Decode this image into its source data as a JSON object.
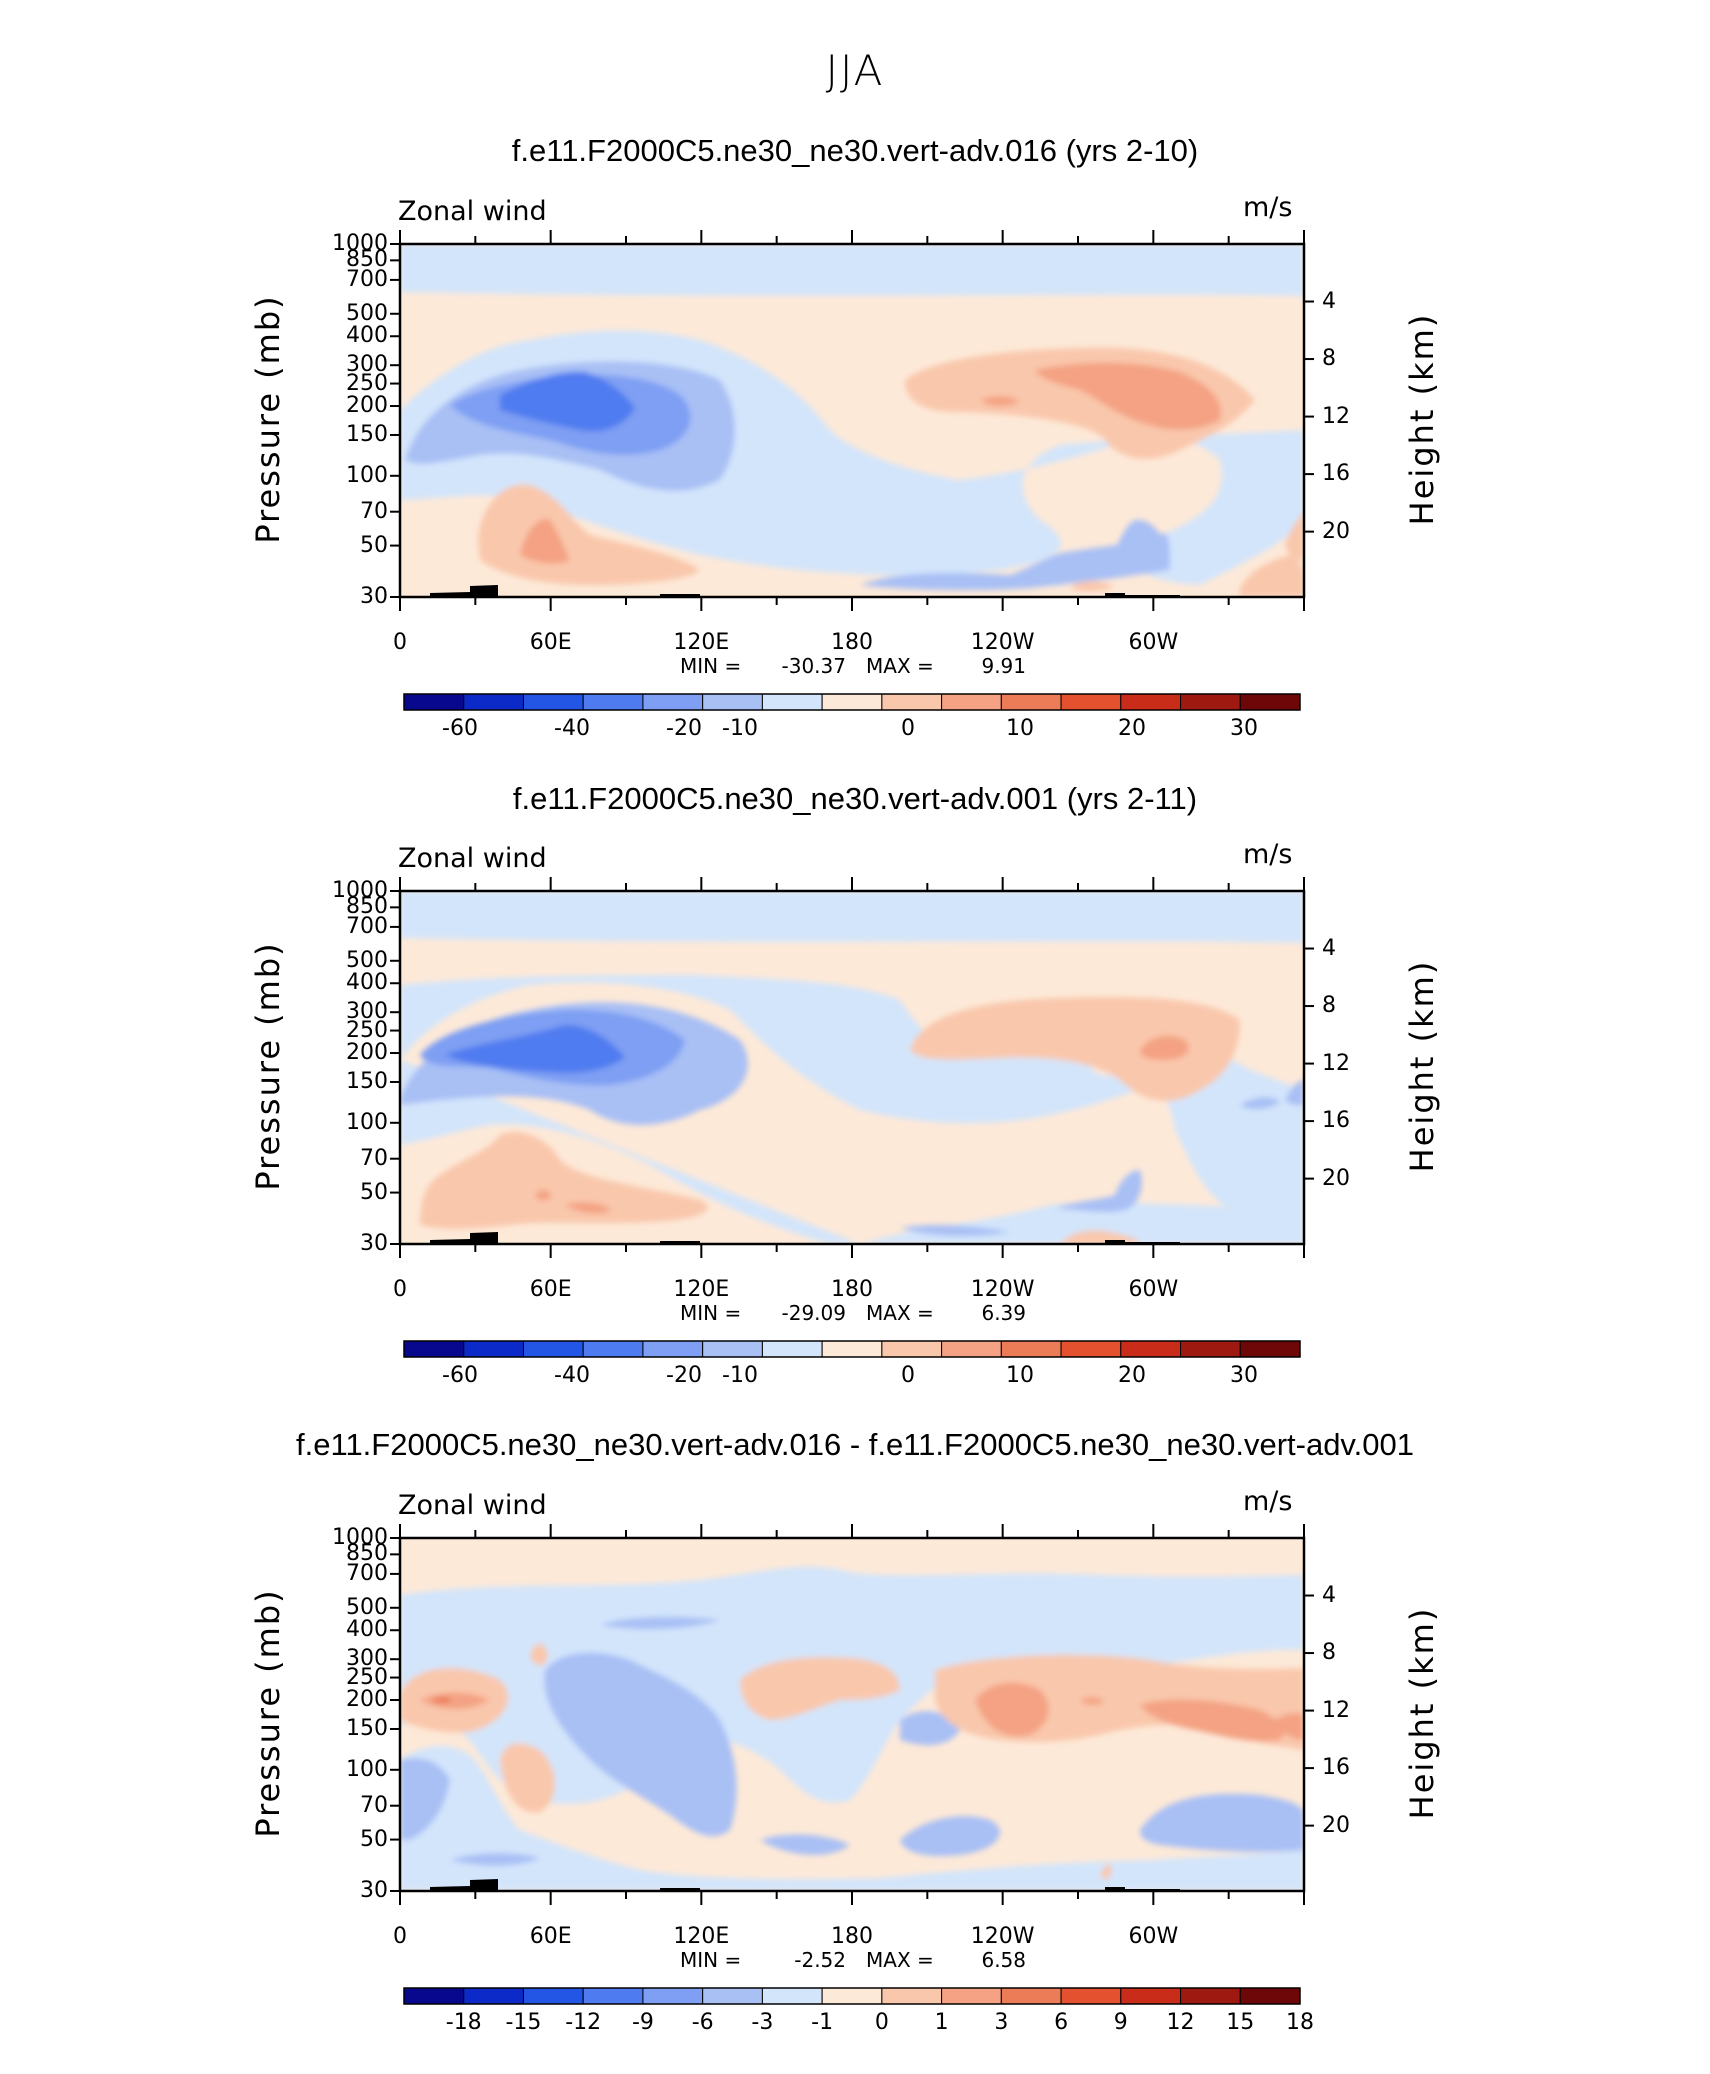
{
  "season": "JJA",
  "axes_text": {
    "field": "Zonal wind",
    "units": "m/s",
    "ylabel_left": "Pressure (mb)",
    "ylabel_right": "Height (km)",
    "min_label": "MIN =",
    "max_label": "MAX ="
  },
  "chart_data": [
    {
      "type": "heatmap",
      "title": "f.e11.F2000C5.ne30_ne30.vert-adv.016 (yrs 2-10)",
      "variable": "Zonal wind",
      "units": "m/s",
      "x_ticks": [
        "0",
        "60E",
        "120E",
        "180",
        "120W",
        "60W"
      ],
      "y_ticks_left": [
        "30",
        "50",
        "70",
        "100",
        "150",
        "200",
        "250",
        "300",
        "400",
        "500",
        "700",
        "850",
        "1000"
      ],
      "y_ticks_right": [
        "20",
        "16",
        "12",
        "8",
        "4"
      ],
      "min": "-30.37",
      "max": "9.91",
      "colorbar_labels": [
        "-60",
        "-40",
        "-20",
        "-10",
        "0",
        "10",
        "20",
        "30"
      ]
    },
    {
      "type": "heatmap",
      "title": "f.e11.F2000C5.ne30_ne30.vert-adv.001 (yrs 2-11)",
      "variable": "Zonal wind",
      "units": "m/s",
      "x_ticks": [
        "0",
        "60E",
        "120E",
        "180",
        "120W",
        "60W"
      ],
      "y_ticks_left": [
        "30",
        "50",
        "70",
        "100",
        "150",
        "200",
        "250",
        "300",
        "400",
        "500",
        "700",
        "850",
        "1000"
      ],
      "y_ticks_right": [
        "20",
        "16",
        "12",
        "8",
        "4"
      ],
      "min": "-29.09",
      "max": "6.39",
      "colorbar_labels": [
        "-60",
        "-40",
        "-20",
        "-10",
        "0",
        "10",
        "20",
        "30"
      ]
    },
    {
      "type": "heatmap",
      "title": "f.e11.F2000C5.ne30_ne30.vert-adv.016 - f.e11.F2000C5.ne30_ne30.vert-adv.001",
      "variable": "Zonal wind",
      "units": "m/s",
      "x_ticks": [
        "0",
        "60E",
        "120E",
        "180",
        "120W",
        "60W"
      ],
      "y_ticks_left": [
        "30",
        "50",
        "70",
        "100",
        "150",
        "200",
        "250",
        "300",
        "400",
        "500",
        "700",
        "850",
        "1000"
      ],
      "y_ticks_right": [
        "20",
        "16",
        "12",
        "8",
        "4"
      ],
      "min": "-2.52",
      "max": "6.58",
      "colorbar_labels": [
        "-18",
        "-15",
        "-12",
        "-9",
        "-6",
        "-3",
        "-1",
        "0",
        "1",
        "3",
        "6",
        "9",
        "12",
        "15",
        "18"
      ]
    }
  ],
  "colors": {
    "palette": [
      "#08088f",
      "#0b2ac8",
      "#2456e6",
      "#4f7bf0",
      "#7e9ff3",
      "#a9c0f5",
      "#d3e5fb",
      "#fde9d8",
      "#f9c7ac",
      "#f4a283",
      "#ec7b58",
      "#e3512f",
      "#c92d1a",
      "#9e1a10",
      "#6e0707"
    ],
    "land": "#000000"
  }
}
